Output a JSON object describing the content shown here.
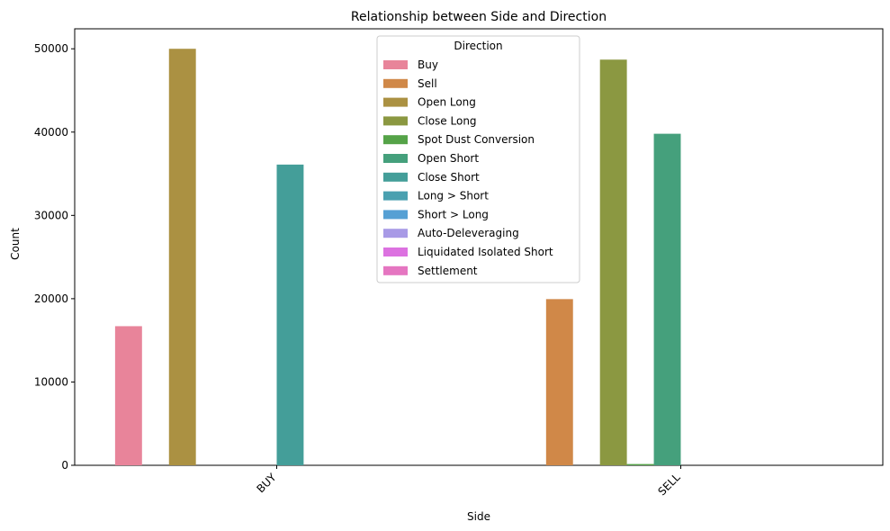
{
  "chart_data": {
    "type": "bar",
    "title": "Relationship between Side and Direction",
    "xlabel": "Side",
    "ylabel": "Count",
    "categories": [
      "BUY",
      "SELL"
    ],
    "ylim": [
      0,
      52400
    ],
    "yticks": [
      0,
      10000,
      20000,
      30000,
      40000,
      50000
    ],
    "legend_title": "Direction",
    "legend_position": "top-center",
    "series": [
      {
        "name": "Buy",
        "color": "#e8849a",
        "values": [
          16700,
          0
        ]
      },
      {
        "name": "Sell",
        "color": "#d08848",
        "values": [
          0,
          19950
        ]
      },
      {
        "name": "Open Long",
        "color": "#ab9142",
        "values": [
          50000,
          0
        ]
      },
      {
        "name": "Close Long",
        "color": "#8b9841",
        "values": [
          0,
          48700
        ]
      },
      {
        "name": "Spot Dust Conversion",
        "color": "#55a348",
        "values": [
          0,
          150
        ]
      },
      {
        "name": "Open Short",
        "color": "#45a07c",
        "values": [
          0,
          39800
        ]
      },
      {
        "name": "Close Short",
        "color": "#449e99",
        "values": [
          36100,
          0
        ]
      },
      {
        "name": "Long > Short",
        "color": "#4aa0b0",
        "values": [
          0,
          0
        ]
      },
      {
        "name": "Short > Long",
        "color": "#56a0d4",
        "values": [
          0,
          0
        ]
      },
      {
        "name": "Auto-Deleveraging",
        "color": "#a89ae6",
        "values": [
          0,
          0
        ]
      },
      {
        "name": "Liquidated Isolated Short",
        "color": "#dc72e0",
        "values": [
          0,
          0
        ]
      },
      {
        "name": "Settlement",
        "color": "#e576c1",
        "values": [
          0,
          0
        ]
      }
    ]
  }
}
